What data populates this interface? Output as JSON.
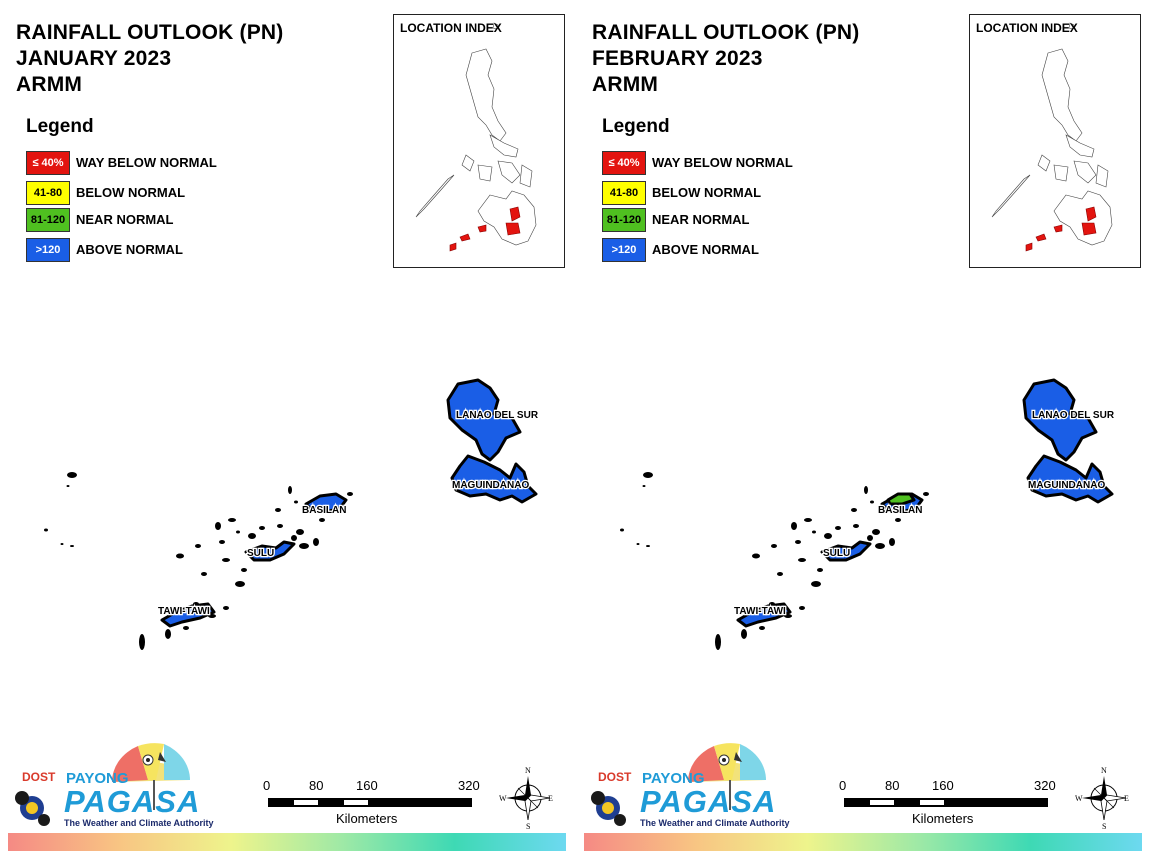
{
  "panels": [
    {
      "title_line1": "RAINFALL OUTLOOK (PN)",
      "title_line2": "JANUARY 2023",
      "title_line3": "ARMM",
      "legend_title": "Legend",
      "legend": [
        {
          "range": "≤ 40%",
          "label": "WAY BELOW NORMAL",
          "color": "#e3140f",
          "text_color": "#ffffff"
        },
        {
          "range": "41-80",
          "label": "BELOW NORMAL",
          "color": "#ffff00",
          "text_color": "#000000"
        },
        {
          "range": "81-120",
          "label": "NEAR NORMAL",
          "color": "#4fc020",
          "text_color": "#000000"
        },
        {
          "range": ">120",
          "label": "ABOVE NORMAL",
          "color": "#1a5ee6",
          "text_color": "#ffffff"
        }
      ],
      "index_title": "LOCATION INDEX",
      "regions": {
        "lanao_del_sur": {
          "label": "LANAO DEL SUR",
          "color": "#1a5ee6"
        },
        "maguindanao": {
          "label": "MAGUINDANAO",
          "color": "#1a5ee6"
        },
        "basilan": {
          "label": "BASILAN",
          "color": "#1a5ee6"
        },
        "sulu": {
          "label": "SULU",
          "color": "#1a5ee6"
        },
        "tawi_tawi": {
          "label": "TAWI-TAWI",
          "color": "#1a5ee6"
        }
      },
      "logo": {
        "dost": "DOST",
        "payong": "PAYONG",
        "pagasa": "PAGASA",
        "tagline": "The Weather and Climate Authority"
      },
      "scale": {
        "ticks": [
          "0",
          "80",
          "160",
          "320"
        ],
        "unit": "Kilometers"
      },
      "compass": {
        "n": "N",
        "s": "S",
        "e": "E",
        "w": "W"
      }
    },
    {
      "title_line1": "RAINFALL OUTLOOK (PN)",
      "title_line2": "FEBRUARY 2023",
      "title_line3": "ARMM",
      "legend_title": "Legend",
      "legend": [
        {
          "range": "≤ 40%",
          "label": "WAY BELOW NORMAL",
          "color": "#e3140f",
          "text_color": "#ffffff"
        },
        {
          "range": "41-80",
          "label": "BELOW NORMAL",
          "color": "#ffff00",
          "text_color": "#000000"
        },
        {
          "range": "81-120",
          "label": "NEAR NORMAL",
          "color": "#4fc020",
          "text_color": "#000000"
        },
        {
          "range": ">120",
          "label": "ABOVE NORMAL",
          "color": "#1a5ee6",
          "text_color": "#ffffff"
        }
      ],
      "index_title": "LOCATION INDEX",
      "regions": {
        "lanao_del_sur": {
          "label": "LANAO DEL SUR",
          "color": "#1a5ee6"
        },
        "maguindanao": {
          "label": "MAGUINDANAO",
          "color": "#1a5ee6"
        },
        "basilan": {
          "label": "BASILAN",
          "color": "#1a5ee6",
          "partial_color": "#4fc020"
        },
        "sulu": {
          "label": "SULU",
          "color": "#1a5ee6"
        },
        "tawi_tawi": {
          "label": "TAWI-TAWI",
          "color": "#1a5ee6"
        }
      },
      "logo": {
        "dost": "DOST",
        "payong": "PAYONG",
        "pagasa": "PAGASA",
        "tagline": "The Weather and Climate Authority"
      },
      "scale": {
        "ticks": [
          "0",
          "80",
          "160",
          "320"
        ],
        "unit": "Kilometers"
      },
      "compass": {
        "n": "N",
        "s": "S",
        "e": "E",
        "w": "W"
      }
    }
  ],
  "colors": {
    "highlight_index": "#e3140f"
  }
}
